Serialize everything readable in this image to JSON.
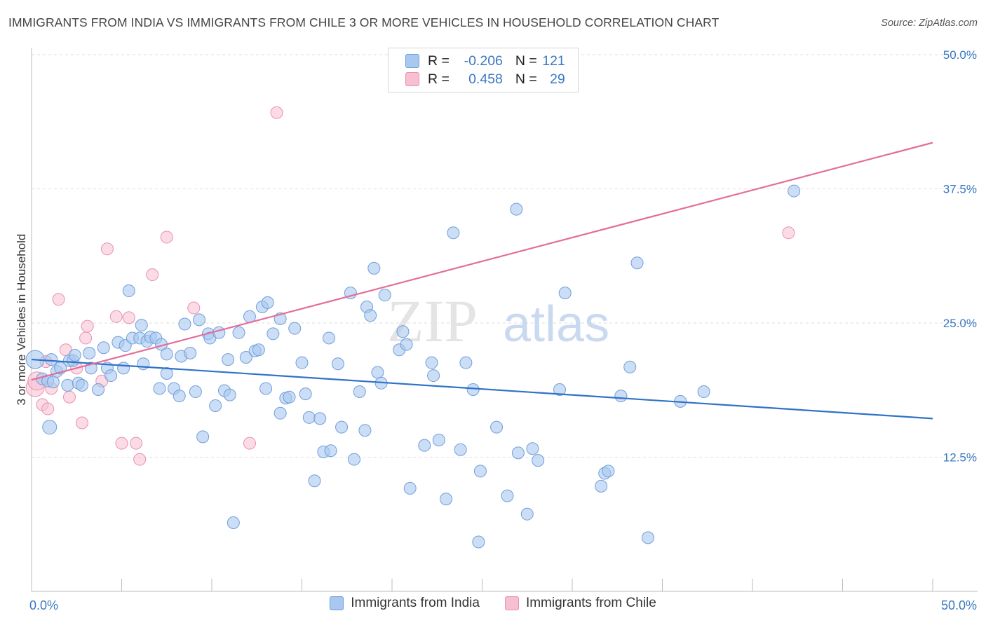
{
  "title": "IMMIGRANTS FROM INDIA VS IMMIGRANTS FROM CHILE 3 OR MORE VEHICLES IN HOUSEHOLD CORRELATION CHART",
  "source": "Source: ZipAtlas.com",
  "watermark": {
    "zip": "ZIP",
    "atlas": "atlas"
  },
  "legend": {
    "india": {
      "r_label": "R =",
      "r_value": "-0.206",
      "n_label": "N =",
      "n_value": "121"
    },
    "chile": {
      "r_label": "R =",
      "r_value": "0.458",
      "n_label": "N =",
      "n_value": "29"
    }
  },
  "colors": {
    "india_fill": "#a9c8ef",
    "india_stroke": "#6f9fdc",
    "india_line": "#2f72c8",
    "chile_fill": "#f7bfd2",
    "chile_stroke": "#ea8fb0",
    "chile_line": "#e46e98",
    "axis_text": "#3a78c3",
    "grid": "#dedede"
  },
  "chart_data": {
    "type": "scatter",
    "ylabel": "3 or more Vehicles in Household",
    "xlim": [
      0,
      50
    ],
    "ylim": [
      0,
      50
    ],
    "x_tick_labels": [
      "0.0%",
      "50.0%"
    ],
    "y_ticks": [
      12.5,
      25.0,
      37.5,
      50.0
    ],
    "y_tick_labels": [
      "12.5%",
      "25.0%",
      "37.5%",
      "50.0%"
    ],
    "grid": true,
    "series": [
      {
        "name": "Immigrants from India",
        "trend": {
          "x": [
            0,
            50
          ],
          "y": [
            21.6,
            16.1
          ]
        },
        "points": [
          [
            0.2,
            21.6
          ],
          [
            0.6,
            19.8
          ],
          [
            0.9,
            19.6
          ],
          [
            1.0,
            15.3
          ],
          [
            1.1,
            21.6
          ],
          [
            1.2,
            19.5
          ],
          [
            1.4,
            20.5
          ],
          [
            1.6,
            20.8
          ],
          [
            2.0,
            19.2
          ],
          [
            2.1,
            21.5
          ],
          [
            2.3,
            21.5
          ],
          [
            2.4,
            22.0
          ],
          [
            2.6,
            19.4
          ],
          [
            2.8,
            19.2
          ],
          [
            3.2,
            22.2
          ],
          [
            3.3,
            20.8
          ],
          [
            3.7,
            18.8
          ],
          [
            4.0,
            22.7
          ],
          [
            4.2,
            20.8
          ],
          [
            4.4,
            20.1
          ],
          [
            4.8,
            23.2
          ],
          [
            5.1,
            20.8
          ],
          [
            5.2,
            22.9
          ],
          [
            5.4,
            28.0
          ],
          [
            5.6,
            23.6
          ],
          [
            6.0,
            23.6
          ],
          [
            6.1,
            24.8
          ],
          [
            6.2,
            21.2
          ],
          [
            6.4,
            23.3
          ],
          [
            6.6,
            23.7
          ],
          [
            6.9,
            23.6
          ],
          [
            7.1,
            18.9
          ],
          [
            7.2,
            23.0
          ],
          [
            7.5,
            20.3
          ],
          [
            7.5,
            22.1
          ],
          [
            7.9,
            18.9
          ],
          [
            8.2,
            18.2
          ],
          [
            8.3,
            21.9
          ],
          [
            8.5,
            24.9
          ],
          [
            8.8,
            22.2
          ],
          [
            9.1,
            18.6
          ],
          [
            9.3,
            25.3
          ],
          [
            9.5,
            14.4
          ],
          [
            9.8,
            24.0
          ],
          [
            9.9,
            23.6
          ],
          [
            10.2,
            17.3
          ],
          [
            10.4,
            24.1
          ],
          [
            10.7,
            18.7
          ],
          [
            10.9,
            21.6
          ],
          [
            11.0,
            18.3
          ],
          [
            11.2,
            6.4
          ],
          [
            11.5,
            24.1
          ],
          [
            11.9,
            21.8
          ],
          [
            12.1,
            25.6
          ],
          [
            12.4,
            22.4
          ],
          [
            12.6,
            22.5
          ],
          [
            12.8,
            26.5
          ],
          [
            13.0,
            18.9
          ],
          [
            13.1,
            26.9
          ],
          [
            13.4,
            24.0
          ],
          [
            13.8,
            25.4
          ],
          [
            13.8,
            16.6
          ],
          [
            14.1,
            18.0
          ],
          [
            14.3,
            18.1
          ],
          [
            14.6,
            24.5
          ],
          [
            15.0,
            21.3
          ],
          [
            15.2,
            18.4
          ],
          [
            15.4,
            16.2
          ],
          [
            15.7,
            10.3
          ],
          [
            16.0,
            16.1
          ],
          [
            16.2,
            13.0
          ],
          [
            16.5,
            23.6
          ],
          [
            16.6,
            13.1
          ],
          [
            17.0,
            21.2
          ],
          [
            17.2,
            15.3
          ],
          [
            17.7,
            27.8
          ],
          [
            17.9,
            12.3
          ],
          [
            18.2,
            18.6
          ],
          [
            18.5,
            15.0
          ],
          [
            18.6,
            26.5
          ],
          [
            18.8,
            25.7
          ],
          [
            19.0,
            30.1
          ],
          [
            19.2,
            20.4
          ],
          [
            19.4,
            19.4
          ],
          [
            19.6,
            27.6
          ],
          [
            20.4,
            22.5
          ],
          [
            20.6,
            24.2
          ],
          [
            20.8,
            23.0
          ],
          [
            21.0,
            9.6
          ],
          [
            21.8,
            13.6
          ],
          [
            22.2,
            21.3
          ],
          [
            22.3,
            20.1
          ],
          [
            22.6,
            14.1
          ],
          [
            23.0,
            8.6
          ],
          [
            23.4,
            33.4
          ],
          [
            23.8,
            13.2
          ],
          [
            24.1,
            21.3
          ],
          [
            24.5,
            18.8
          ],
          [
            24.8,
            4.6
          ],
          [
            24.9,
            11.2
          ],
          [
            25.8,
            15.3
          ],
          [
            26.4,
            8.9
          ],
          [
            26.9,
            35.6
          ],
          [
            27.0,
            12.9
          ],
          [
            27.5,
            7.2
          ],
          [
            27.8,
            13.3
          ],
          [
            28.1,
            12.2
          ],
          [
            29.3,
            18.8
          ],
          [
            29.6,
            27.8
          ],
          [
            31.6,
            9.8
          ],
          [
            31.8,
            11.0
          ],
          [
            32.0,
            11.2
          ],
          [
            32.7,
            18.2
          ],
          [
            33.2,
            20.9
          ],
          [
            33.6,
            30.6
          ],
          [
            34.2,
            5.0
          ],
          [
            36.0,
            17.7
          ],
          [
            37.3,
            18.6
          ],
          [
            42.3,
            37.3
          ]
        ]
      },
      {
        "name": "Immigrants from Chile",
        "trend": {
          "x": [
            0,
            50
          ],
          "y": [
            19.7,
            41.8
          ]
        },
        "points": [
          [
            0.2,
            19.0
          ],
          [
            0.3,
            19.6
          ],
          [
            0.6,
            17.4
          ],
          [
            0.8,
            21.4
          ],
          [
            0.9,
            17.0
          ],
          [
            1.1,
            18.9
          ],
          [
            1.5,
            27.2
          ],
          [
            1.9,
            22.5
          ],
          [
            2.1,
            18.1
          ],
          [
            2.5,
            20.8
          ],
          [
            2.8,
            15.7
          ],
          [
            3.0,
            23.6
          ],
          [
            3.1,
            24.7
          ],
          [
            3.9,
            19.6
          ],
          [
            4.2,
            31.9
          ],
          [
            4.7,
            25.6
          ],
          [
            5.0,
            13.8
          ],
          [
            5.4,
            25.5
          ],
          [
            5.8,
            13.8
          ],
          [
            6.0,
            12.3
          ],
          [
            6.7,
            29.5
          ],
          [
            7.5,
            33.0
          ],
          [
            9.0,
            26.4
          ],
          [
            12.1,
            13.8
          ],
          [
            13.6,
            44.6
          ],
          [
            42.0,
            33.4
          ]
        ]
      }
    ]
  }
}
